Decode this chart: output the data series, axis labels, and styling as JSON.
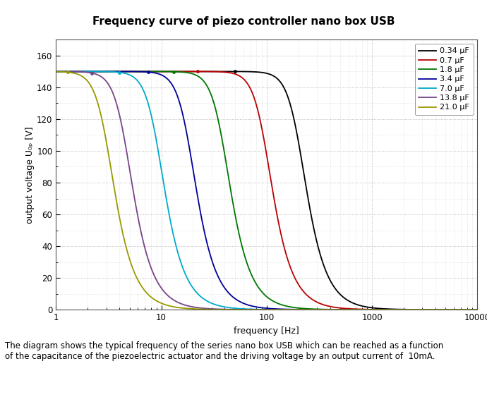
{
  "title": "Frequency curve of piezo controller nano box USB",
  "xlabel": "frequency [Hz]",
  "ylabel": "output voltage U₀ₚ [V]",
  "xlim": [
    1,
    10000
  ],
  "ylim": [
    0,
    170
  ],
  "yticks": [
    0,
    20,
    40,
    60,
    80,
    100,
    120,
    140,
    160
  ],
  "caption": "The diagram shows the typical frequency of the series nano box USB which can be reached as a function\nof the capacitance of the piezoelectric actuator and the driving voltage by an output current of  10mA.",
  "series": [
    {
      "label": "0.34 μF",
      "color": "#000000",
      "fc": 200,
      "n": 3
    },
    {
      "label": "0.7 μF",
      "color": "#bb0000",
      "fc": 95,
      "n": 3
    },
    {
      "label": "1.8 μF",
      "color": "#007700",
      "fc": 38,
      "n": 3
    },
    {
      "label": "3.4 μF",
      "color": "#000099",
      "fc": 18,
      "n": 3
    },
    {
      "label": "7.0 μF",
      "color": "#00aacc",
      "fc": 9,
      "n": 3
    },
    {
      "label": "13.8 μF",
      "color": "#774488",
      "fc": 4.5,
      "n": 3
    },
    {
      "label": "21.0 μF",
      "color": "#999900",
      "fc": 3.0,
      "n": 3
    }
  ],
  "V_max": 150,
  "marker_dots": [
    {
      "f": 1.3,
      "series": 6
    },
    {
      "f": 2.2,
      "series": 5
    },
    {
      "f": 4.0,
      "series": 4
    },
    {
      "f": 7.5,
      "series": 3
    },
    {
      "f": 13.0,
      "series": 2
    },
    {
      "f": 22.0,
      "series": 1
    },
    {
      "f": 50.0,
      "series": 0
    }
  ]
}
